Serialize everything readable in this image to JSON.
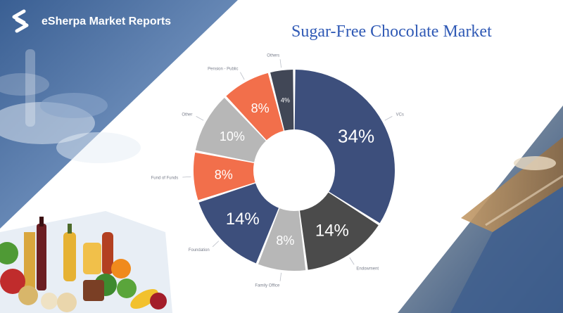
{
  "brand": {
    "name": "eSherpa Market Reports",
    "logo_icon": "esherpa-logo-icon"
  },
  "title": "Sugar-Free Chocolate Market",
  "colors": {
    "title": "#2f59b5",
    "navy": "#3d4f7c",
    "dark_gray": "#4b4b4b",
    "light_gray": "#b7b7b7",
    "orange": "#f26f4b",
    "charcoal": "#414756",
    "brand_overlay": "#4a6a9c"
  },
  "chart_data": {
    "type": "pie",
    "donut": true,
    "title": "",
    "slices": [
      {
        "label": "VCs",
        "value_text": "",
        "percent": 34,
        "percent_label": "34%",
        "color": "#3d4f7c"
      },
      {
        "label": "Endowment",
        "value_text": "",
        "percent": 14,
        "percent_label": "14%",
        "color": "#4b4b4b"
      },
      {
        "label": "Family Office",
        "value_text": "",
        "percent": 8,
        "percent_label": "8%",
        "color": "#b7b7b7"
      },
      {
        "label": "Foundation",
        "value_text": "",
        "percent": 14,
        "percent_label": "14%",
        "color": "#3d4f7c"
      },
      {
        "label": "Fund of Funds",
        "value_text": "",
        "percent": 8,
        "percent_label": "8%",
        "color": "#f26f4b"
      },
      {
        "label": "Other",
        "value_text": "",
        "percent": 10,
        "percent_label": "10%",
        "color": "#b7b7b7"
      },
      {
        "label": "Pension - Public",
        "value_text": "",
        "percent": 8,
        "percent_label": "8%",
        "color": "#f26f4b"
      },
      {
        "label": "Others",
        "value_text": "",
        "percent": 4,
        "percent_label": "4%",
        "color": "#414756"
      }
    ]
  }
}
